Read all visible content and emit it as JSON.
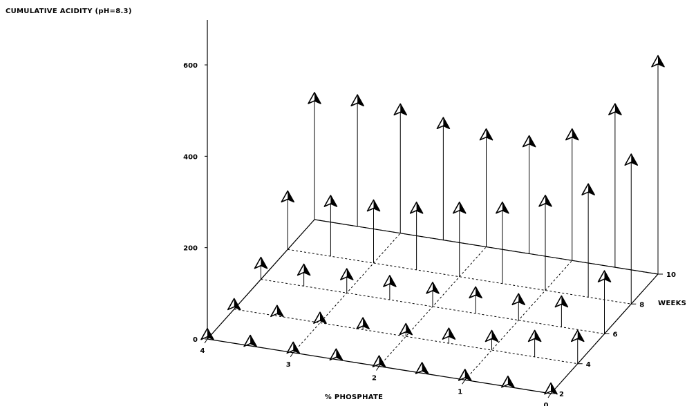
{
  "chart_data": {
    "type": "scatter",
    "projection": "3d-stem",
    "title": "CUMULATIVE ACIDITY (pH=8.3)",
    "xlabel": "% PHOSPHATE",
    "ylabel": "WEEKS",
    "zlabel": "",
    "x_ticks": [
      "4",
      "3",
      "2",
      "1",
      "0"
    ],
    "y_ticks": [
      "2",
      "4",
      "6",
      "8",
      "10"
    ],
    "z_ticks": [
      "0",
      "200",
      "400",
      "600"
    ],
    "xlim": [
      4,
      0
    ],
    "ylim": [
      2,
      10
    ],
    "zlim": [
      0,
      600
    ],
    "grid": true,
    "phosphate": [
      4.0,
      3.5,
      3.0,
      2.5,
      2.0,
      1.5,
      1.0,
      0.5,
      0.0
    ],
    "weeks": [
      2,
      4,
      6,
      8,
      10
    ],
    "values": [
      [
        5,
        5,
        5,
        5,
        5,
        5,
        5,
        5,
        5
      ],
      [
        5,
        5,
        5,
        8,
        10,
        15,
        25,
        40,
        55
      ],
      [
        30,
        30,
        35,
        35,
        35,
        40,
        40,
        50,
        120
      ],
      [
        110,
        115,
        120,
        130,
        145,
        160,
        190,
        230,
        310
      ],
      [
        260,
        270,
        265,
        250,
        240,
        240,
        270,
        340,
        460
      ]
    ]
  }
}
